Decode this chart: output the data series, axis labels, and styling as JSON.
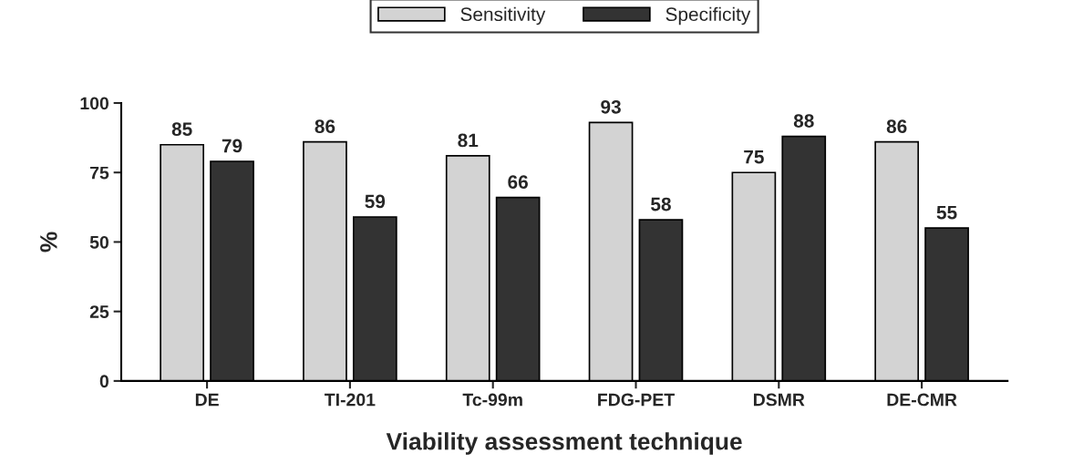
{
  "chart_data": {
    "type": "bar",
    "xlabel": "Viability assessment technique",
    "ylabel": "%",
    "categories": [
      "DE",
      "TI-201",
      "Tc-99m",
      "FDG-PET",
      "DSMR",
      "DE-CMR"
    ],
    "series": [
      {
        "name": "Sensitivity",
        "color": "#d3d3d3",
        "values": [
          85,
          86,
          81,
          93,
          75,
          86
        ]
      },
      {
        "name": "Specificity",
        "color": "#333333",
        "values": [
          79,
          59,
          66,
          58,
          88,
          55
        ]
      }
    ],
    "ylim": [
      0,
      100
    ],
    "yticks": [
      0,
      25,
      50,
      75,
      100
    ],
    "data_labels": true,
    "legend": "top",
    "grid": false
  }
}
